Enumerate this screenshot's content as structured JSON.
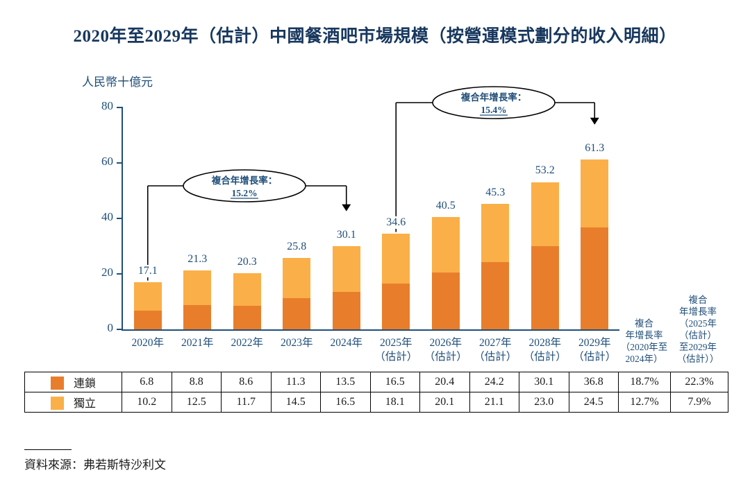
{
  "title": "2020年至2029年（估計）中國餐酒吧市場規模（按營運模式劃分的收入明細）",
  "y_axis_label": "人民幣十億元",
  "source": "資料來源：弗若斯特沙利文",
  "palette": {
    "axis_text": "#1f4e79",
    "title_text": "#17375e",
    "chain_color": "#e87e2b",
    "independent_color": "#fbaf48",
    "line_color": "#000000"
  },
  "chart_data": {
    "type": "bar",
    "stacked": true,
    "title": "2020年至2029年（估計）中國餐酒吧市場規模（按營運模式劃分的收入明細）",
    "ylabel": "人民幣十億元",
    "xlabel": "",
    "ylim": [
      0,
      80
    ],
    "yticks": [
      0,
      20,
      40,
      60,
      80
    ],
    "grid": false,
    "legend_position": "table-left",
    "categories": [
      "2020年",
      "2021年",
      "2022年",
      "2023年",
      "2024年",
      "2025年\n（估計）",
      "2026年\n（估計）",
      "2027年\n（估計）",
      "2028年\n（估計）",
      "2029年\n（估計）"
    ],
    "series": [
      {
        "name": "連鎖",
        "color": "#e87e2b",
        "values": [
          6.8,
          8.8,
          8.6,
          11.3,
          13.5,
          16.5,
          20.4,
          24.2,
          30.1,
          36.8
        ]
      },
      {
        "name": "獨立",
        "color": "#fbaf48",
        "values": [
          10.2,
          12.5,
          11.7,
          14.5,
          16.5,
          18.1,
          20.1,
          21.1,
          23.0,
          24.5
        ]
      }
    ],
    "totals": [
      17.1,
      21.3,
      20.3,
      25.8,
      30.1,
      34.6,
      40.5,
      45.3,
      53.2,
      61.3
    ],
    "annotations": [
      {
        "label": "複合年增長率：",
        "value": "15.2%",
        "from_index": 0,
        "to_index": 4
      },
      {
        "label": "複合年增長率：",
        "value": "15.4%",
        "from_index": 5,
        "to_index": 9
      }
    ]
  },
  "table": {
    "cagr_headers": [
      {
        "lines": [
          "複合",
          "年增長率",
          "（2020年至",
          "2024年）"
        ]
      },
      {
        "lines": [
          "複合",
          "年增長率",
          "（2025年",
          "（估計）",
          "至2029年",
          "（估計））"
        ]
      }
    ],
    "rows": [
      {
        "label": "連鎖",
        "values": [
          "6.8",
          "8.8",
          "8.6",
          "11.3",
          "13.5",
          "16.5",
          "20.4",
          "24.2",
          "30.1",
          "36.8"
        ],
        "cagr": [
          "18.7%",
          "22.3%"
        ]
      },
      {
        "label": "獨立",
        "values": [
          "10.2",
          "12.5",
          "11.7",
          "14.5",
          "16.5",
          "18.1",
          "20.1",
          "21.1",
          "23.0",
          "24.5"
        ],
        "cagr": [
          "12.7%",
          "7.9%"
        ]
      }
    ]
  }
}
